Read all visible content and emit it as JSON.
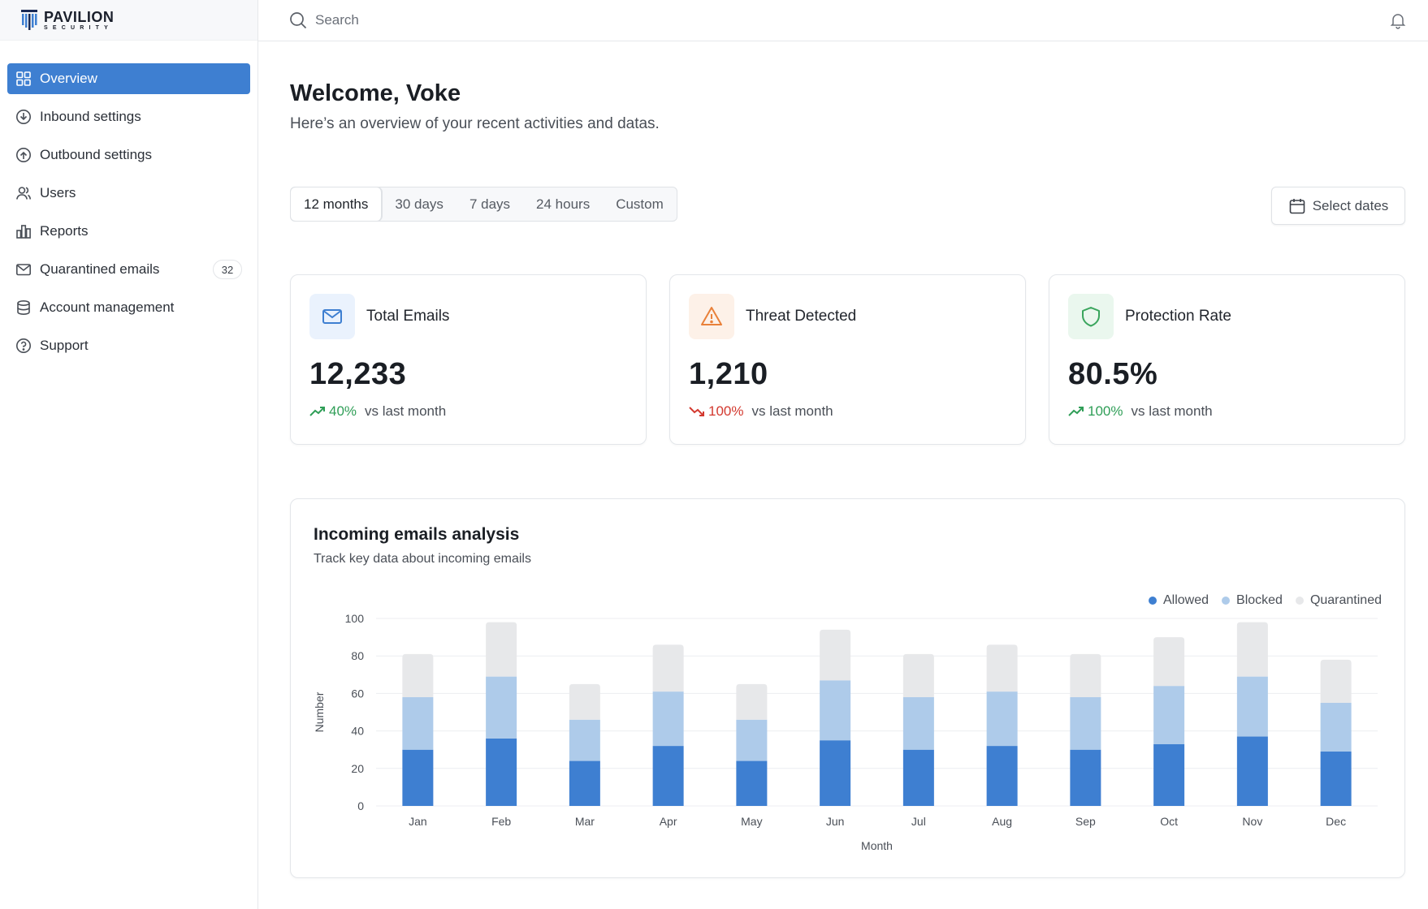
{
  "brand": {
    "name": "PAVILION",
    "tagline": "SECURITY"
  },
  "sidebar": {
    "items": [
      {
        "label": "Overview",
        "icon": "grid-icon",
        "active": true
      },
      {
        "label": "Inbound settings",
        "icon": "download-circle-icon"
      },
      {
        "label": "Outbound settings",
        "icon": "upload-circle-icon"
      },
      {
        "label": "Users",
        "icon": "users-icon"
      },
      {
        "label": "Reports",
        "icon": "bar-chart-icon"
      },
      {
        "label": "Quarantined emails",
        "icon": "mail-icon",
        "badge": "32"
      },
      {
        "label": "Account management",
        "icon": "database-icon"
      },
      {
        "label": "Support",
        "icon": "help-circle-icon"
      }
    ]
  },
  "topbar": {
    "search_placeholder": "Search"
  },
  "main": {
    "welcome": "Welcome, Voke",
    "subtitle": "Here’s an overview of your recent activities and datas.",
    "ranges": [
      "12 months",
      "30 days",
      "7 days",
      "24 hours",
      "Custom"
    ],
    "active_range": "12 months",
    "select_dates_label": "Select dates"
  },
  "stats": [
    {
      "title": "Total Emails",
      "value": "12,233",
      "delta": "40%",
      "trend": "up",
      "compare": "vs last month",
      "icon": "mail-icon",
      "icon_color": "#3e7fd1",
      "icon_bg": "#eaf2fd"
    },
    {
      "title": "Threat Detected",
      "value": "1,210",
      "delta": "100%",
      "trend": "down",
      "compare": "vs last month",
      "icon": "warning-icon",
      "icon_color": "#e9813a",
      "icon_bg": "#fdf1e8"
    },
    {
      "title": "Protection Rate",
      "value": "80.5%",
      "delta": "100%",
      "trend": "up",
      "compare": "vs last month",
      "icon": "shield-icon",
      "icon_color": "#3aa55d",
      "icon_bg": "#eaf7ee"
    }
  ],
  "chart": {
    "title": "Incoming emails analysis",
    "subtitle": "Track key data about incoming emails"
  },
  "chart_data": {
    "type": "bar",
    "stacked": true,
    "categories": [
      "Jan",
      "Feb",
      "Mar",
      "Apr",
      "May",
      "Jun",
      "Jul",
      "Aug",
      "Sep",
      "Oct",
      "Nov",
      "Dec"
    ],
    "series": [
      {
        "name": "Allowed",
        "color": "#3e7fd1",
        "values": [
          30,
          36,
          24,
          32,
          24,
          35,
          30,
          32,
          30,
          33,
          37,
          29
        ]
      },
      {
        "name": "Blocked",
        "color": "#aecbea",
        "values": [
          28,
          33,
          22,
          29,
          22,
          32,
          28,
          29,
          28,
          31,
          32,
          26
        ]
      },
      {
        "name": "Quarantined",
        "color": "#e7e8ea",
        "values": [
          23,
          29,
          19,
          25,
          19,
          27,
          23,
          25,
          23,
          26,
          29,
          23
        ]
      }
    ],
    "ylim": [
      0,
      100
    ],
    "yticks": [
      0,
      20,
      40,
      60,
      80,
      100
    ],
    "xlabel": "Month",
    "ylabel": "Number",
    "legend": "top-right",
    "grid": true
  }
}
